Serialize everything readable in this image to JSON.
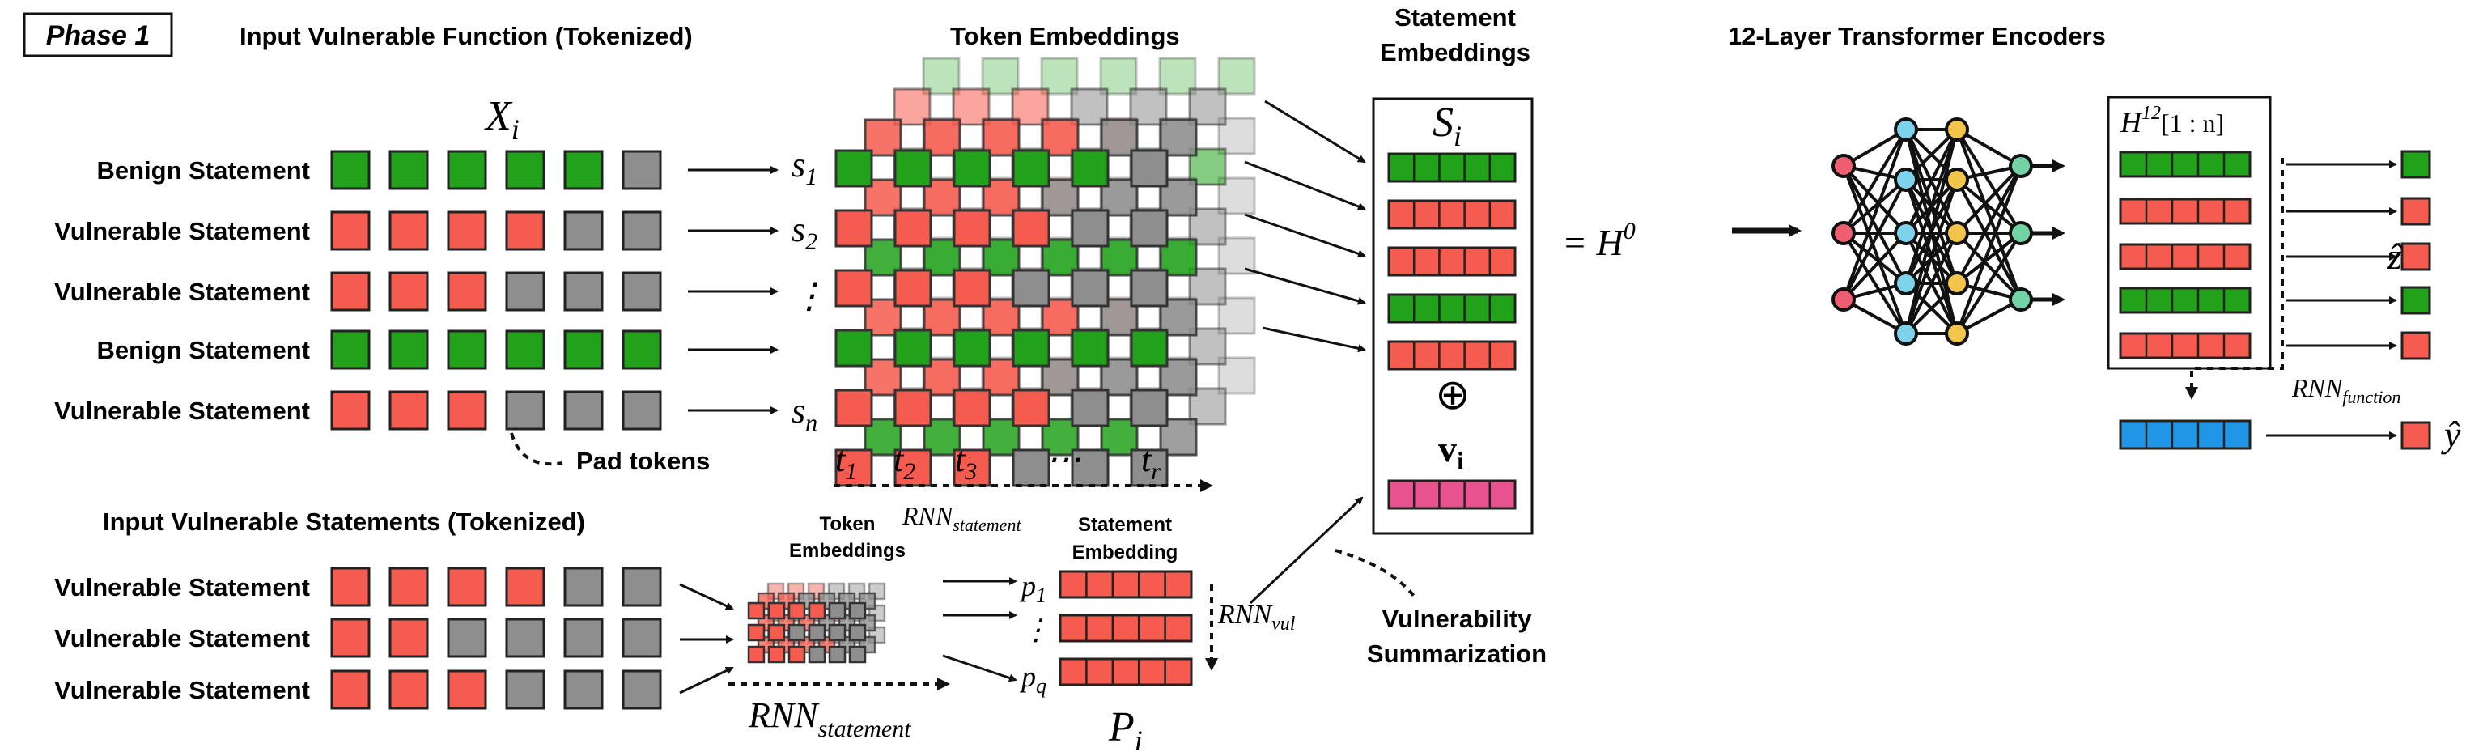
{
  "colors": {
    "benign": "#22a21b",
    "vulnerable": "#f55b4e",
    "pad": "#8e8e8e",
    "vul_summary": "#e8538f",
    "function_emb": "#2196e6",
    "node_red": "#ef5e70",
    "node_blue": "#7dd3ec",
    "node_yellow": "#f3c54b",
    "node_green": "#73d3a6"
  },
  "phase": {
    "label": "Phase 1"
  },
  "titles": {
    "input_function": "Input Vulnerable Function (Tokenized)",
    "token_embeddings": "Token Embeddings",
    "statement_embeddings_line1": "Statement",
    "statement_embeddings_line2": "Embeddings",
    "transformer": "12-Layer Transformer Encoders",
    "input_statements": "Input Vulnerable Statements (Tokenized)",
    "small_token_emb_line1": "Token",
    "small_token_emb_line2": "Embeddings",
    "small_stmt_emb_line1": "Statement",
    "small_stmt_emb_line2": "Embedding",
    "vuln_summary_line1": "Vulnerability",
    "vuln_summary_line2": "Summarization"
  },
  "function_rows": [
    {
      "label": "Benign Statement",
      "cells": [
        "benign",
        "benign",
        "benign",
        "benign",
        "benign",
        "pad"
      ]
    },
    {
      "label": "Vulnerable Statement",
      "cells": [
        "vulnerable",
        "vulnerable",
        "vulnerable",
        "vulnerable",
        "pad",
        "pad"
      ]
    },
    {
      "label": "Vulnerable Statement",
      "cells": [
        "vulnerable",
        "vulnerable",
        "vulnerable",
        "pad",
        "pad",
        "pad"
      ]
    },
    {
      "label": "Benign Statement",
      "cells": [
        "benign",
        "benign",
        "benign",
        "benign",
        "benign",
        "benign"
      ]
    },
    {
      "label": "Vulnerable Statement",
      "cells": [
        "vulnerable",
        "vulnerable",
        "vulnerable",
        "pad",
        "pad",
        "pad"
      ]
    }
  ],
  "statement_rows": [
    {
      "label": "Vulnerable Statement",
      "cells": [
        "vulnerable",
        "vulnerable",
        "vulnerable",
        "vulnerable",
        "pad",
        "pad"
      ]
    },
    {
      "label": "Vulnerable Statement",
      "cells": [
        "vulnerable",
        "vulnerable",
        "pad",
        "pad",
        "pad",
        "pad"
      ]
    },
    {
      "label": "Vulnerable Statement",
      "cells": [
        "vulnerable",
        "vulnerable",
        "vulnerable",
        "pad",
        "pad",
        "pad"
      ]
    }
  ],
  "math": {
    "X_base": "X",
    "X_sub": "i",
    "s_labels": [
      {
        "base": "s",
        "sub": "1"
      },
      {
        "base": "s",
        "sub": "2"
      },
      {
        "base": "⋮",
        "sub": ""
      },
      {
        "base": "s",
        "sub": "n"
      }
    ],
    "t_labels": [
      {
        "base": "t",
        "sub": "1"
      },
      {
        "base": "t",
        "sub": "2"
      },
      {
        "base": "t",
        "sub": "3"
      },
      {
        "base": "⋯",
        "sub": ""
      },
      {
        "base": "t",
        "sub": "r"
      }
    ],
    "rnn_statement_base": "RNN",
    "rnn_statement_sub": "statement",
    "S_base": "S",
    "S_sub": "i",
    "oplus": "⊕",
    "v_base": "v",
    "v_sub": "i",
    "equals_H_base": "= H",
    "equals_H_sup": "0",
    "H12_base": "H",
    "H12_sup": "12",
    "H12_range": "[1 : n]",
    "rnn_function_base": "RNN",
    "rnn_function_sub": "function",
    "z_hat": "ẑ",
    "y_hat": "ŷ",
    "p_labels": [
      {
        "base": "p",
        "sub": "1"
      },
      {
        "base": "⋮",
        "sub": ""
      },
      {
        "base": "p",
        "sub": "q"
      }
    ],
    "rnn_vul_base": "RNN",
    "rnn_vul_sub": "vul",
    "P_base": "P",
    "P_sub": "i"
  },
  "statement_embedding_stack": [
    "benign",
    "vulnerable",
    "vulnerable",
    "benign",
    "vulnerable"
  ],
  "encoder_output_stack": [
    "benign",
    "vulnerable",
    "vulnerable",
    "benign",
    "vulnerable"
  ],
  "pad_tokens_label": "Pad tokens"
}
